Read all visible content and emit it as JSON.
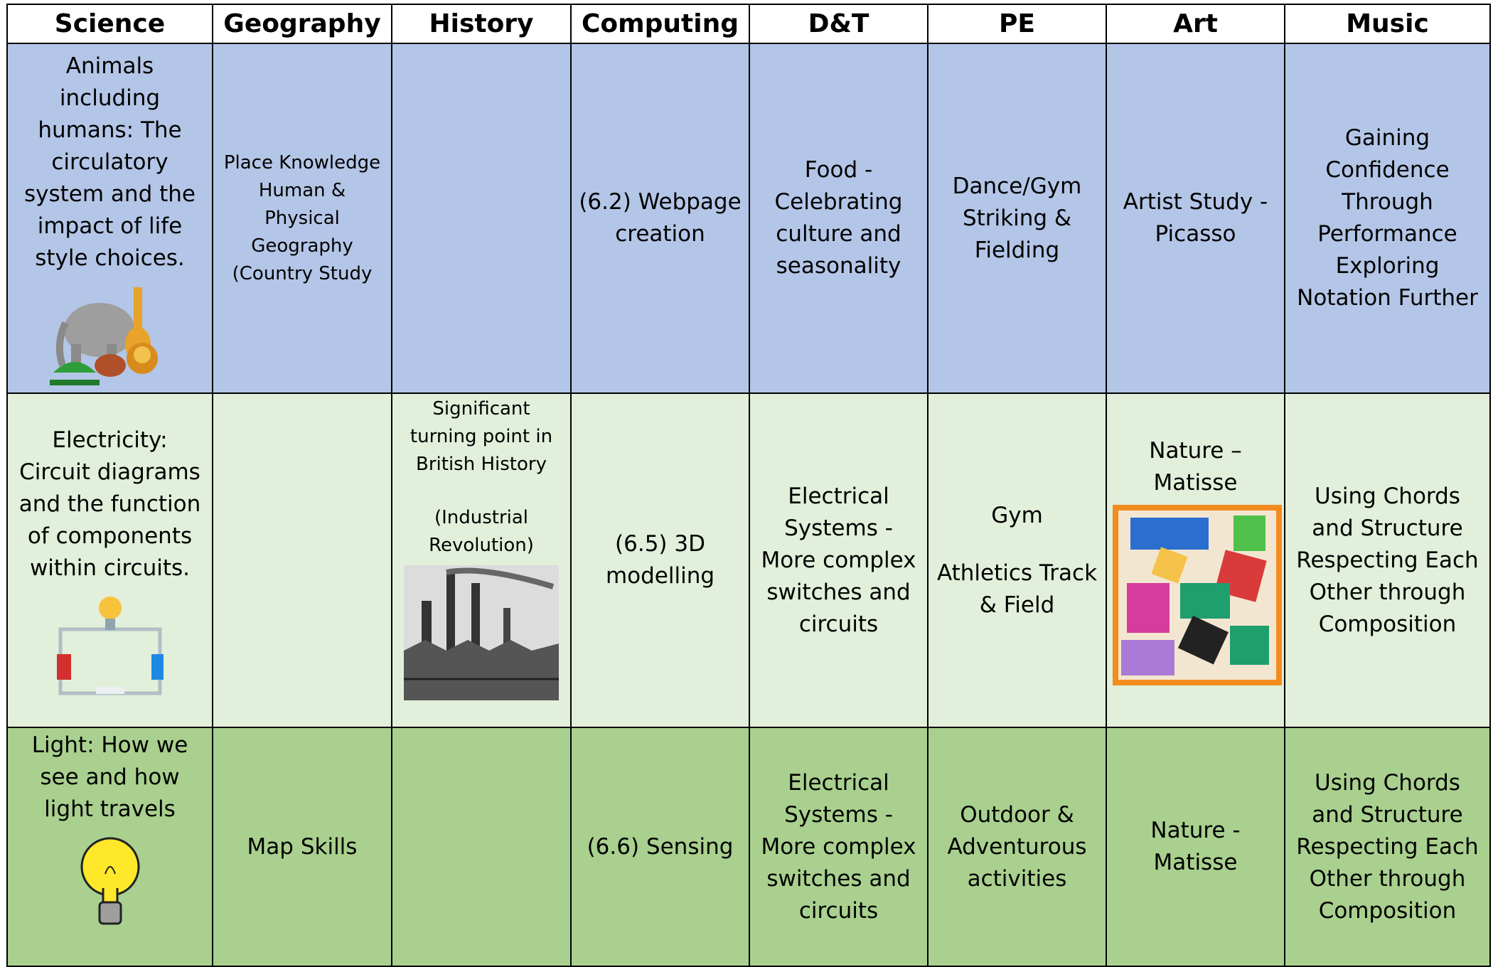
{
  "table": {
    "header": [
      "Science",
      "Geography",
      "History",
      "Computing",
      "D&T",
      "PE",
      "Art",
      "Music"
    ],
    "rows": [
      [
        [
          "Animals including humans: The circulatory system and the impact of life style choices."
        ],
        [
          "Place Knowledge Human & Physical Geography (Country Study"
        ],
        null,
        [
          "(6.2) Webpage creation"
        ],
        [
          "Food - Celebrating culture and seasonality"
        ],
        [
          "Dance/Gym Striking & Fielding"
        ],
        [
          "Artist Study - Picasso"
        ],
        [
          "Gaining Confidence Through Performance Exploring Notation Further"
        ]
      ],
      [
        [
          "Electricity: Circuit diagrams and the function of components within circuits."
        ],
        null,
        [
          "Significant turning point in British History",
          "(Industrial Revolution)"
        ],
        [
          "(6.5) 3D modelling"
        ],
        [
          "Electrical Systems - More complex switches and circuits"
        ],
        [
          "Gym",
          "Athletics Track & Field"
        ],
        [
          "Nature – Matisse"
        ],
        [
          "Using Chords and Structure Respecting Each Other through Composition"
        ]
      ],
      [
        [
          "Light: How we see and how light travels"
        ],
        [
          "Map Skills"
        ],
        null,
        [
          "(6.6) Sensing"
        ],
        [
          "Electrical Systems - More complex switches and circuits"
        ],
        [
          "Outdoor & Adventurous activities"
        ],
        [
          "Nature - Matisse"
        ],
        [
          "Using Chords and Structure Respecting Each Other through Composition"
        ]
      ]
    ]
  }
}
